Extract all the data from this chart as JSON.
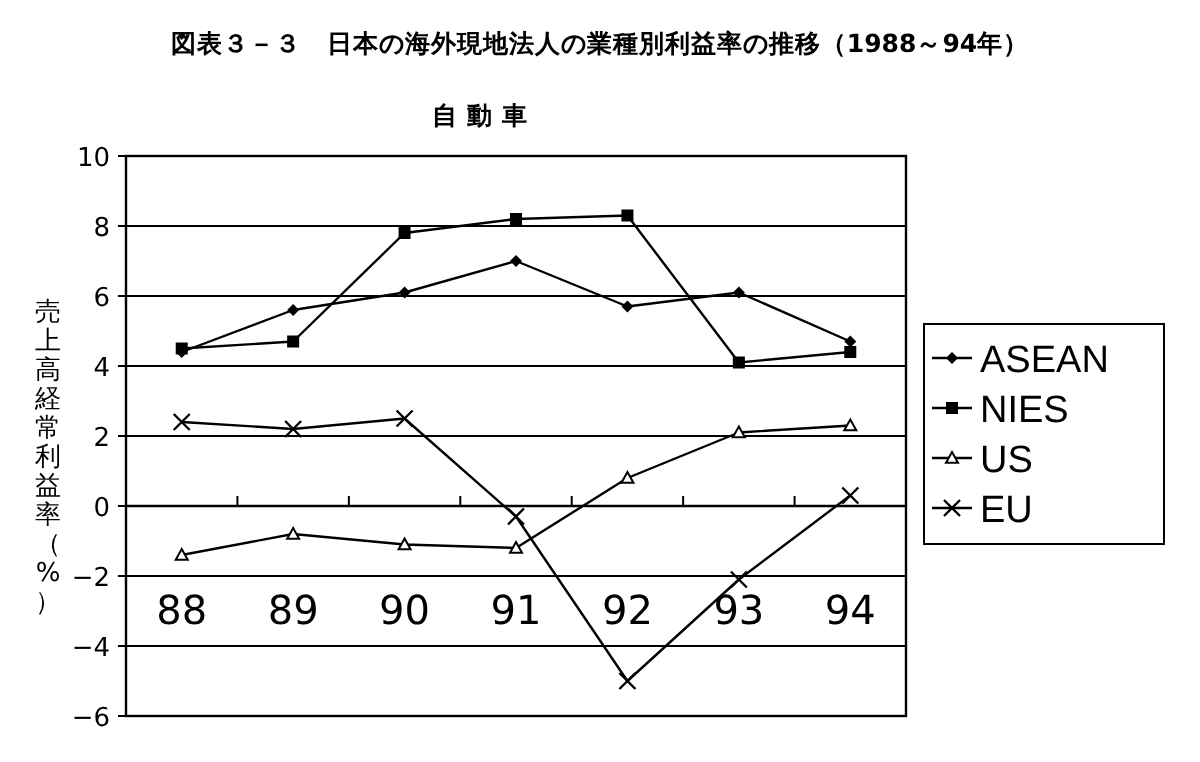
{
  "chart_data": {
    "type": "line",
    "title": "図表３－３　日本の海外現地法人の業種別利益率の推移（1988～94年）",
    "subtitle": "自 動 車",
    "ylabel": "売上高経常利益率（%）",
    "categories": [
      "88",
      "89",
      "90",
      "91",
      "92",
      "93",
      "94"
    ],
    "series": [
      {
        "name": "ASEAN",
        "color": "#000000",
        "marker": "diamond",
        "values": [
          4.4,
          5.6,
          6.1,
          7.0,
          5.7,
          6.1,
          4.7
        ]
      },
      {
        "name": "NIES",
        "color": "#000000",
        "marker": "square",
        "values": [
          4.5,
          4.7,
          7.8,
          8.2,
          8.3,
          4.1,
          4.4
        ]
      },
      {
        "name": "US",
        "color": "#000000",
        "marker": "triangle",
        "values": [
          -1.4,
          -0.8,
          -1.1,
          -1.2,
          0.8,
          2.1,
          2.3
        ]
      },
      {
        "name": "EU",
        "color": "#000000",
        "marker": "cross",
        "values": [
          2.4,
          2.2,
          2.5,
          -0.3,
          -5.0,
          -2.1,
          0.3
        ]
      }
    ],
    "ylim": [
      -6,
      10
    ],
    "yticks": [
      -6,
      -4,
      -2,
      0,
      2,
      4,
      6,
      8,
      10
    ],
    "grid": "y",
    "legend": "right",
    "line_style": "solid"
  }
}
